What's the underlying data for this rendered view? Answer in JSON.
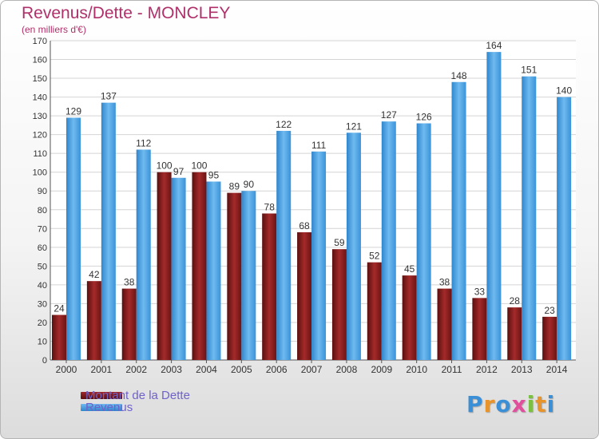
{
  "header": {
    "title": "Revenus/Dette - MONCLEY",
    "subtitle": "(en milliers d'€)"
  },
  "chart_data": {
    "type": "bar",
    "categories": [
      "2000",
      "2001",
      "2002",
      "2003",
      "2004",
      "2005",
      "2006",
      "2007",
      "2008",
      "2009",
      "2010",
      "2011",
      "2012",
      "2013",
      "2014"
    ],
    "series": [
      {
        "name": "Montant de la Dette",
        "color": "#7a1a1a",
        "values": [
          24,
          42,
          38,
          100,
          100,
          89,
          78,
          68,
          59,
          52,
          45,
          38,
          33,
          28,
          23
        ]
      },
      {
        "name": "Revenus",
        "color": "#4aa3e6",
        "values": [
          129,
          137,
          112,
          97,
          95,
          90,
          122,
          111,
          121,
          127,
          126,
          148,
          164,
          151,
          140
        ]
      }
    ],
    "ylim": [
      0,
      170
    ],
    "yticks": [
      0,
      10,
      20,
      30,
      40,
      50,
      60,
      70,
      80,
      90,
      100,
      110,
      120,
      130,
      140,
      150,
      160,
      170
    ],
    "grid": true,
    "legend_position": "bottom-left"
  },
  "legend": {
    "items": [
      {
        "label": "Montant de la Dette",
        "color": "#7a1a1a"
      },
      {
        "label": "Revenus",
        "color": "#4aa3e6"
      }
    ]
  },
  "logo": {
    "letters": [
      {
        "ch": "P",
        "color": "#3b8fd6"
      },
      {
        "ch": "r",
        "color": "#e8942a"
      },
      {
        "ch": "o",
        "color": "#3b8fd6"
      },
      {
        "ch": "x",
        "color": "#e14e9c"
      },
      {
        "ch": "i",
        "color": "#7cc043"
      },
      {
        "ch": "t",
        "color": "#e8942a"
      },
      {
        "ch": "i",
        "color": "#3b8fd6"
      }
    ]
  }
}
